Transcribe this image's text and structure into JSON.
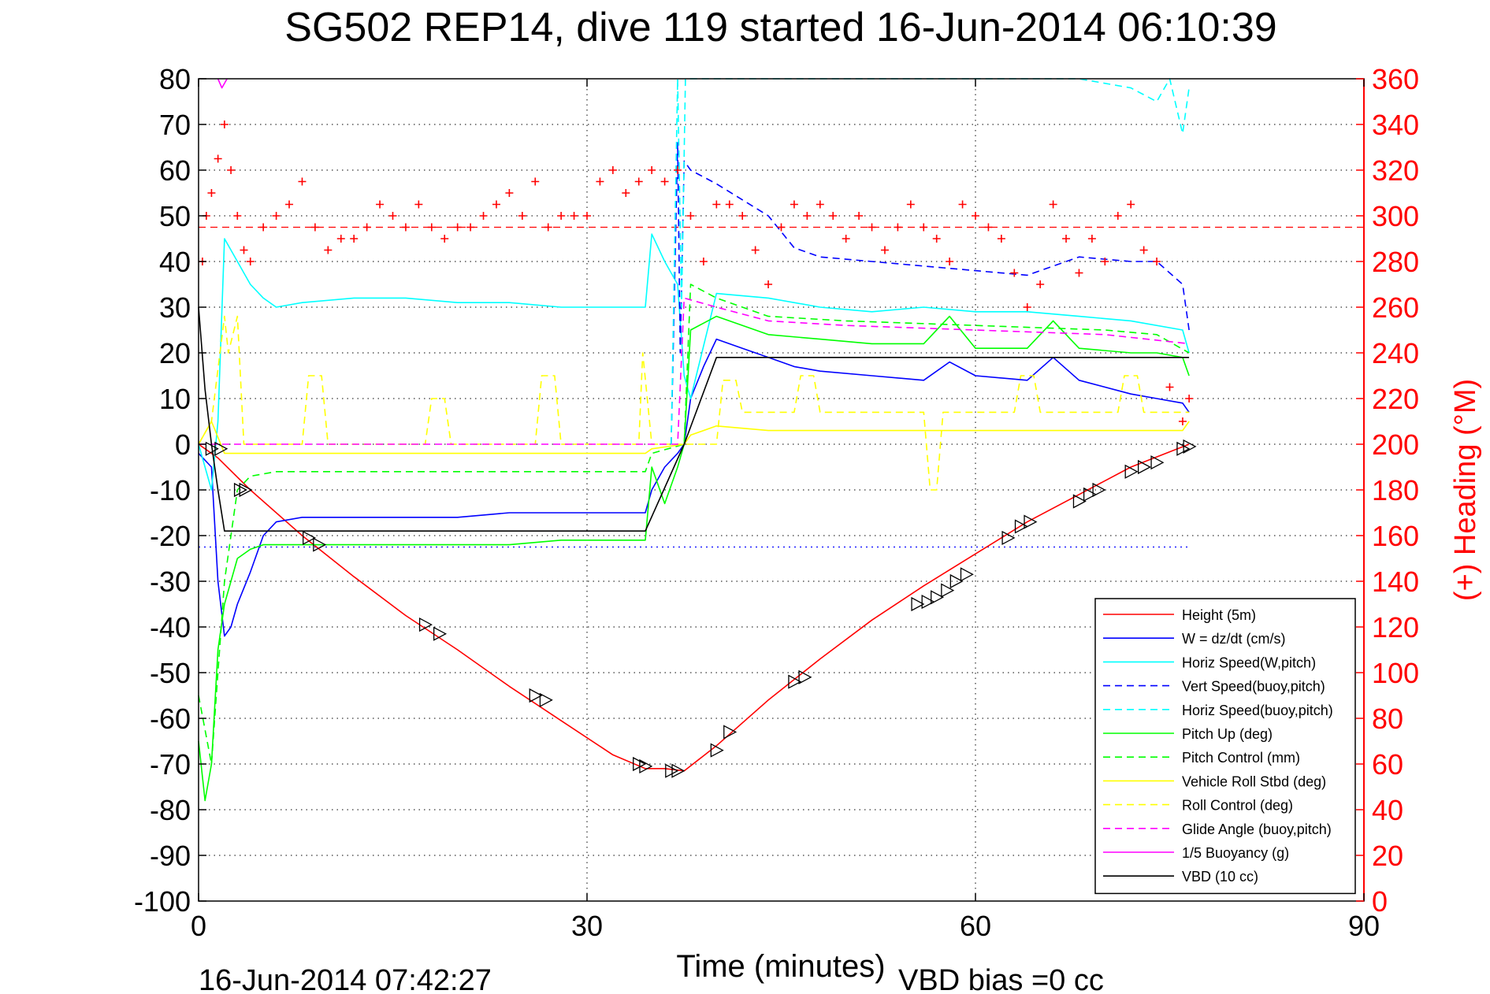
{
  "chart_data": {
    "type": "line",
    "title": "SG502 REP14, dive 119 started 16-Jun-2014 06:10:39",
    "xlabel": "Time (minutes)",
    "ylabel_left": "",
    "ylabel_right": "(+) Heading (°M)",
    "footer_left": "16-Jun-2014 07:42:27",
    "footer_right": "VBD bias =0 cc",
    "xlim": [
      0,
      90
    ],
    "ylim_left": [
      -100,
      80
    ],
    "ylim_right": [
      0,
      360
    ],
    "x_ticks": [
      "0",
      "30",
      "60",
      "90"
    ],
    "y_ticks_left": [
      "80",
      "70",
      "60",
      "50",
      "40",
      "30",
      "20",
      "10",
      "0",
      "-10",
      "-20",
      "-30",
      "-40",
      "-50",
      "-60",
      "-70",
      "-80",
      "-90",
      "-100"
    ],
    "y_ticks_right": [
      "360",
      "340",
      "320",
      "300",
      "280",
      "260",
      "240",
      "220",
      "200",
      "180",
      "160",
      "140",
      "120",
      "100",
      "80",
      "60",
      "40",
      "20",
      "0"
    ],
    "grid": true,
    "legend_position": "bottom-right",
    "colors": {
      "height": "#ff0000",
      "w": "#0000ff",
      "horiz_speed": "#00ffff",
      "vert_speed_buoy": "#0000ff",
      "horiz_speed_buoy": "#00ffff",
      "pitch_up": "#00ff00",
      "pitch_control": "#00ff00",
      "roll": "#ffff00",
      "roll_control": "#ffff00",
      "glide_angle": "#ff00ff",
      "buoyancy": "#ff00ff",
      "vbd": "#000000",
      "heading": "#ff0000",
      "right_axis": "#ff0000"
    },
    "series": [
      {
        "name": "Height (5m)",
        "style": "solid",
        "color": "#ff0000",
        "x": [
          0,
          1.5,
          4,
          8,
          12,
          16,
          20,
          24,
          28,
          32,
          34.5,
          36,
          37.5,
          40,
          44,
          48,
          52,
          56,
          60,
          64,
          68,
          72,
          76.5
        ],
        "y": [
          0,
          -3,
          -10,
          -20,
          -29,
          -37.5,
          -45,
          -53,
          -60.5,
          -68,
          -71,
          -71,
          -71.5,
          -66,
          -56,
          -47,
          -38.5,
          -31,
          -24,
          -17,
          -11,
          -5,
          0
        ]
      },
      {
        "name": "W = dz/dt (cm/s)",
        "style": "solid",
        "color": "#0000ff",
        "x": [
          0,
          1,
          1.5,
          2,
          2.5,
          3,
          4,
          5,
          6,
          8,
          12,
          16,
          20,
          24,
          28,
          32,
          34.5,
          35,
          36,
          37,
          37.5,
          38,
          39,
          40,
          42,
          44,
          46,
          48,
          52,
          56,
          58,
          60,
          64,
          66,
          68,
          72,
          74,
          76,
          76.5
        ],
        "y": [
          -2,
          -5,
          -30,
          -42,
          -40,
          -35,
          -28,
          -20,
          -17,
          -16,
          -16,
          -16,
          -16,
          -15,
          -15,
          -15,
          -15,
          -10,
          -5,
          -2,
          0,
          10,
          17,
          23,
          21,
          19,
          17,
          16,
          15,
          14,
          18,
          15,
          14,
          19,
          14,
          11,
          10,
          9,
          7
        ]
      },
      {
        "name": "Horiz Speed(W,pitch)",
        "style": "solid",
        "color": "#00ffff",
        "x": [
          0,
          1,
          1.5,
          2,
          3,
          4,
          5,
          6,
          8,
          12,
          16,
          20,
          24,
          28,
          32,
          34.5,
          35,
          36,
          37,
          37.5,
          38,
          40,
          44,
          48,
          52,
          56,
          60,
          64,
          68,
          72,
          76,
          76.5
        ],
        "y": [
          0,
          -10,
          5,
          45,
          40,
          35,
          32,
          30,
          31,
          32,
          32,
          31,
          31,
          30,
          30,
          30,
          46,
          40,
          35,
          15,
          10,
          33,
          32,
          30,
          29,
          30,
          29,
          29,
          28,
          27,
          25,
          20
        ]
      },
      {
        "name": "Vert Speed(buoy,pitch)",
        "style": "dashed",
        "color": "#0000ff",
        "x": [
          36.5,
          37,
          37.2,
          37.5,
          38,
          40,
          44,
          46,
          48,
          52,
          56,
          60,
          64,
          68,
          72,
          74,
          76,
          76.5
        ],
        "y": [
          0,
          66,
          20,
          62,
          60,
          57,
          50,
          43,
          41,
          40,
          39,
          38,
          37,
          41,
          40,
          40,
          35,
          25
        ]
      },
      {
        "name": "Horiz Speed(buoy,pitch)",
        "style": "dashed",
        "color": "#00ffff",
        "x": [
          36.5,
          37,
          37.3,
          37.6,
          62,
          64,
          68,
          72,
          74,
          75,
          76,
          76.5
        ],
        "y": [
          0,
          80,
          30,
          80,
          80,
          80,
          80,
          78,
          75,
          80,
          68,
          78
        ]
      },
      {
        "name": "Pitch Up (deg)",
        "style": "solid",
        "color": "#00ff00",
        "x": [
          0,
          0.5,
          1,
          1.5,
          2,
          3,
          4,
          5,
          6,
          8,
          12,
          16,
          20,
          24,
          28,
          32,
          34.5,
          35,
          36,
          37,
          37.5,
          38,
          40,
          44,
          48,
          52,
          56,
          58,
          60,
          64,
          66,
          68,
          72,
          74,
          76,
          76.5
        ],
        "y": [
          -65,
          -78,
          -70,
          -45,
          -35,
          -25,
          -23,
          -22,
          -22,
          -22,
          -22,
          -22,
          -22,
          -22,
          -21,
          -21,
          -21,
          -5,
          -13,
          -5,
          0,
          25,
          28,
          24,
          23,
          22,
          22,
          28,
          21,
          21,
          27,
          21,
          20,
          20,
          19,
          15
        ]
      },
      {
        "name": "Pitch Control (mm)",
        "style": "dashed",
        "color": "#00ff00",
        "x": [
          0,
          1,
          1.5,
          2,
          3,
          4,
          6,
          10,
          20,
          30,
          34.5,
          35,
          37.5,
          38,
          40,
          44,
          50,
          60,
          70,
          74,
          76.5
        ],
        "y": [
          -55,
          -70,
          -50,
          -30,
          -10,
          -7,
          -6,
          -6,
          -6,
          -6,
          -6,
          -2,
          0,
          35,
          32,
          28,
          27,
          26,
          25,
          24,
          20
        ]
      },
      {
        "name": "Vehicle Roll Stbd (deg)",
        "style": "solid",
        "color": "#ffff00",
        "x": [
          0,
          1,
          2,
          3,
          5,
          8,
          12,
          16,
          20,
          24,
          28,
          32,
          34.5,
          35,
          37.5,
          38,
          40,
          44,
          48,
          52,
          56,
          60,
          64,
          68,
          72,
          76,
          76.5
        ],
        "y": [
          0,
          5,
          -2,
          -2,
          -2,
          -2,
          -2,
          -2,
          -2,
          -2,
          -2,
          -2,
          -2,
          -1,
          0,
          2,
          4,
          3,
          3,
          3,
          3,
          3,
          3,
          3,
          3,
          3,
          5
        ]
      },
      {
        "name": "Roll Control (deg)",
        "style": "dashed",
        "color": "#ffff00",
        "x": [
          0,
          1,
          2,
          2.3,
          3,
          3.5,
          8,
          8.5,
          9.5,
          10,
          17.5,
          18,
          19,
          19.5,
          26,
          26.5,
          27.5,
          28,
          34,
          34.3,
          35,
          37.5,
          40,
          40.5,
          41.5,
          42,
          46,
          46.5,
          47.5,
          48,
          56,
          56.5,
          57,
          57.5,
          60,
          63,
          63.5,
          64.5,
          65,
          71,
          71.5,
          72.5,
          73,
          76.5
        ],
        "y": [
          0,
          5,
          28,
          20,
          28,
          0,
          0,
          15,
          15,
          0,
          0,
          10,
          10,
          0,
          0,
          15,
          15,
          0,
          0,
          20,
          0,
          0,
          0,
          14,
          14,
          7,
          7,
          15,
          15,
          7,
          7,
          -10,
          -10,
          7,
          7,
          7,
          15,
          15,
          7,
          7,
          15,
          15,
          7,
          7
        ]
      },
      {
        "name": "Glide Angle (buoy,pitch)",
        "style": "dashed",
        "color": "#ff00ff",
        "x": [
          0,
          37,
          37.5,
          40,
          44,
          50,
          60,
          70,
          76.5
        ],
        "y": [
          0,
          0,
          32,
          30,
          27,
          26,
          25,
          24,
          22
        ]
      },
      {
        "name": "1/5 Buoyancy (g)",
        "style": "solid",
        "color": "#ff00ff",
        "x": [
          1.5,
          1.8,
          2.2
        ],
        "y": [
          80,
          78,
          80
        ]
      },
      {
        "name": "VBD (10 cc)",
        "style": "solid",
        "color": "#000000",
        "x": [
          0,
          0.5,
          1,
          1.5,
          2,
          3,
          5,
          8,
          12,
          16,
          20,
          24,
          28,
          32,
          34.5,
          37.5,
          40,
          44,
          50,
          60,
          70,
          76.5
        ],
        "y": [
          30,
          12,
          0,
          -10,
          -19,
          -19,
          -19,
          -19,
          -19,
          -19,
          -19,
          -19,
          -19,
          -19,
          -19,
          0,
          19,
          19,
          19,
          19,
          19,
          19
        ]
      }
    ],
    "reference_lines": [
      {
        "axis": "right",
        "value": 295,
        "color": "#ff0000",
        "style": "dashed"
      },
      {
        "axis": "left",
        "value": -22.5,
        "color": "#0000ff",
        "style": "dotted",
        "x_range": [
          0,
          76.5
        ]
      }
    ],
    "heading_points": {
      "color": "#ff0000",
      "marker": "+",
      "x": [
        0.3,
        0.6,
        1,
        1.5,
        2,
        2.5,
        3,
        3.5,
        4,
        5,
        6,
        7,
        8,
        9,
        10,
        11,
        12,
        13,
        14,
        15,
        16,
        17,
        18,
        19,
        20,
        21,
        22,
        23,
        24,
        25,
        26,
        27,
        28,
        29,
        30,
        31,
        32,
        33,
        34,
        35,
        36,
        37,
        38,
        39,
        40,
        41,
        42,
        43,
        44,
        45,
        46,
        47,
        48,
        49,
        50,
        51,
        52,
        53,
        54,
        55,
        56,
        57,
        58,
        59,
        60,
        61,
        62,
        63,
        64,
        65,
        66,
        67,
        68,
        69,
        70,
        71,
        72,
        73,
        74,
        75,
        76,
        76.5
      ],
      "y": [
        280,
        300,
        310,
        325,
        340,
        320,
        300,
        285,
        280,
        295,
        300,
        305,
        315,
        295,
        285,
        290,
        290,
        295,
        305,
        300,
        295,
        305,
        295,
        290,
        295,
        295,
        300,
        305,
        310,
        300,
        315,
        295,
        300,
        300,
        300,
        315,
        320,
        310,
        315,
        320,
        315,
        320,
        300,
        280,
        305,
        305,
        300,
        285,
        270,
        295,
        305,
        300,
        305,
        300,
        290,
        300,
        295,
        285,
        295,
        305,
        295,
        290,
        280,
        305,
        300,
        295,
        290,
        275,
        260,
        270,
        305,
        290,
        275,
        290,
        280,
        300,
        305,
        285,
        280,
        225,
        210,
        220
      ]
    },
    "markers": {
      "shape": "triangle",
      "x": [
        1,
        1.7,
        3.2,
        3.6,
        8.5,
        9.3,
        17.5,
        18.6,
        26,
        26.8,
        34,
        34.5,
        36.5,
        37,
        40,
        41,
        46,
        46.8,
        55.5,
        56.3,
        57,
        57.8,
        58.5,
        59.3,
        62.5,
        63.5,
        64.2,
        68,
        68.8,
        69.5,
        72,
        73,
        74,
        76,
        76.5
      ],
      "y": [
        -1,
        -1,
        -10,
        -10,
        -20.5,
        -22,
        -39.5,
        -41.5,
        -55,
        -56,
        -70,
        -70.5,
        -71.5,
        -71.5,
        -67,
        -63,
        -52,
        -51,
        -35,
        -34.5,
        -33.5,
        -32,
        -30,
        -28.5,
        -20.5,
        -18,
        -17,
        -12.5,
        -11,
        -10,
        -6,
        -5,
        -4,
        -1,
        -0.5
      ]
    },
    "legend": [
      "Height (5m)",
      "W = dz/dt (cm/s)",
      "Horiz Speed(W,pitch)",
      "Vert Speed(buoy,pitch)",
      "Horiz Speed(buoy,pitch)",
      "Pitch Up (deg)",
      "Pitch Control (mm)",
      "Vehicle Roll Stbd (deg)",
      "Roll Control (deg)",
      "Glide Angle (buoy,pitch)",
      "1/5 Buoyancy (g)",
      "VBD (10 cc)"
    ]
  }
}
